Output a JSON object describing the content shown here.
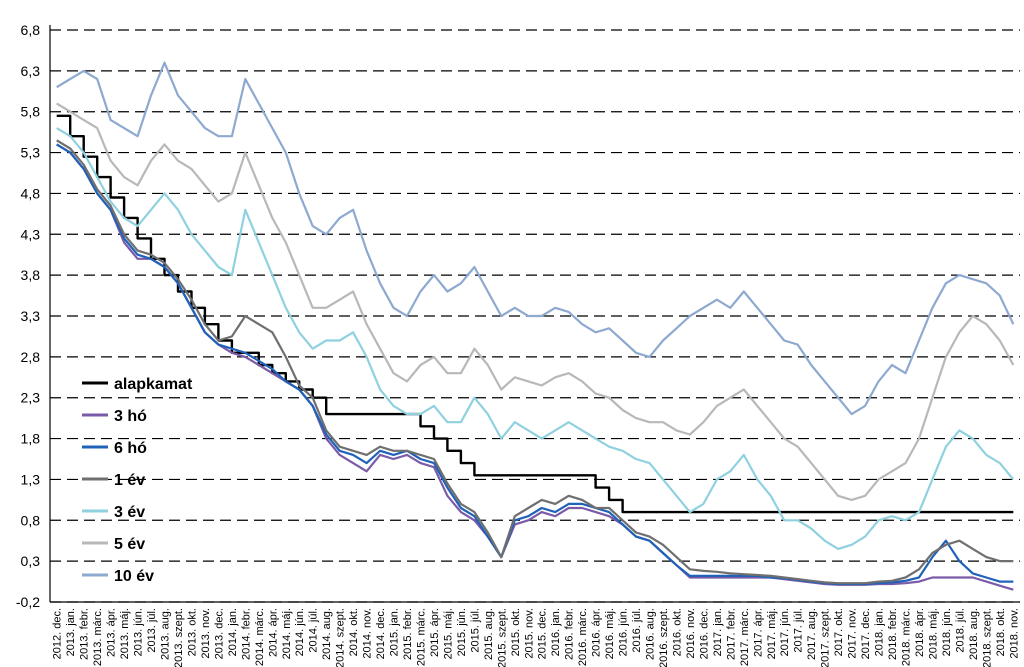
{
  "chart_data": {
    "type": "line",
    "ylim": [
      -0.2,
      6.8
    ],
    "y_ticks": [
      "6,8",
      "6,3",
      "5,8",
      "5,3",
      "4,8",
      "4,3",
      "3,8",
      "3,3",
      "2,8",
      "2,3",
      "1,8",
      "1,3",
      "0,8",
      "0,3",
      "-0,2"
    ],
    "x_ticks": [
      "2012. dec.",
      "2013. jan.",
      "2013. febr.",
      "2013. márc.",
      "2013. ápr.",
      "2013. máj.",
      "2013. jún.",
      "2013. júl.",
      "2013. aug.",
      "2013. szept.",
      "2013. okt.",
      "2013. nov.",
      "2013. dec.",
      "2014. jan.",
      "2014. febr.",
      "2014. márc.",
      "2014. ápr.",
      "2014. máj.",
      "2014. jún.",
      "2014. júl.",
      "2014. aug.",
      "2014. szept.",
      "2014. okt.",
      "2014. nov.",
      "2014. dec.",
      "2015. jan.",
      "2015. febr.",
      "2015. márc.",
      "2015. ápr.",
      "2015. máj.",
      "2015. jún.",
      "2015. júl.",
      "2015. aug.",
      "2015. szept.",
      "2015. okt.",
      "2015. nov.",
      "2015. dec.",
      "2016. jan.",
      "2016. febr.",
      "2016. márc.",
      "2016. ápr.",
      "2016. máj.",
      "2016. jún.",
      "2016. júl.",
      "2016. aug.",
      "2016. szept.",
      "2016. okt.",
      "2016. nov.",
      "2016. dec.",
      "2017. jan.",
      "2017. febr.",
      "2017. márc.",
      "2017. ápr.",
      "2017. máj.",
      "2017. jún.",
      "2017. júl.",
      "2017. aug.",
      "2017. szept.",
      "2017. okt.",
      "2017. nov.",
      "2017. dec.",
      "2018. jan.",
      "2018. febr.",
      "2018. márc.",
      "2018. ápr.",
      "2018. máj.",
      "2018. jún.",
      "2018. júl.",
      "2018. aug.",
      "2018. szept.",
      "2018. okt.",
      "2018. nov."
    ],
    "grid": "horizontal dashed",
    "legend_position": "left",
    "series": [
      {
        "name": "alapkamat",
        "color": "#000000",
        "values": [
          5.75,
          5.5,
          5.25,
          5.0,
          4.75,
          4.5,
          4.25,
          4.0,
          3.8,
          3.6,
          3.4,
          3.2,
          3.0,
          2.85,
          2.85,
          2.7,
          2.6,
          2.5,
          2.4,
          2.3,
          2.1,
          2.1,
          2.1,
          2.1,
          2.1,
          2.1,
          2.1,
          1.95,
          1.8,
          1.65,
          1.5,
          1.35,
          1.35,
          1.35,
          1.35,
          1.35,
          1.35,
          1.35,
          1.35,
          1.35,
          1.2,
          1.05,
          0.9,
          0.9,
          0.9,
          0.9,
          0.9,
          0.9,
          0.9,
          0.9,
          0.9,
          0.9,
          0.9,
          0.9,
          0.9,
          0.9,
          0.9,
          0.9,
          0.9,
          0.9,
          0.9,
          0.9,
          0.9,
          0.9,
          0.9,
          0.9,
          0.9,
          0.9,
          0.9,
          0.9,
          0.9,
          0.9
        ]
      },
      {
        "name": "3 hó",
        "color": "#7b5ba8",
        "values": [
          5.4,
          5.3,
          5.1,
          4.8,
          4.6,
          4.2,
          4.0,
          4.0,
          3.9,
          3.7,
          3.4,
          3.1,
          2.95,
          2.85,
          2.8,
          2.7,
          2.6,
          2.5,
          2.4,
          2.2,
          1.8,
          1.6,
          1.5,
          1.4,
          1.6,
          1.55,
          1.6,
          1.5,
          1.45,
          1.1,
          0.9,
          0.8,
          0.6,
          0.35,
          0.75,
          0.8,
          0.9,
          0.85,
          0.95,
          0.95,
          0.9,
          0.85,
          0.75,
          0.6,
          0.55,
          0.4,
          0.25,
          0.1,
          0.1,
          0.1,
          0.1,
          0.1,
          0.1,
          0.1,
          0.08,
          0.06,
          0.04,
          0.02,
          0.01,
          0.01,
          0.01,
          0.02,
          0.02,
          0.03,
          0.05,
          0.1,
          0.1,
          0.1,
          0.1,
          0.05,
          0.0,
          -0.05
        ]
      },
      {
        "name": "6 hó",
        "color": "#1f62b8",
        "values": [
          5.4,
          5.3,
          5.1,
          4.8,
          4.6,
          4.25,
          4.05,
          4.0,
          3.9,
          3.7,
          3.4,
          3.1,
          2.95,
          2.9,
          2.85,
          2.75,
          2.65,
          2.5,
          2.4,
          2.2,
          1.85,
          1.65,
          1.6,
          1.5,
          1.65,
          1.6,
          1.65,
          1.55,
          1.5,
          1.2,
          0.95,
          0.85,
          0.6,
          0.35,
          0.8,
          0.85,
          0.95,
          0.9,
          1.0,
          1.0,
          0.95,
          0.9,
          0.75,
          0.6,
          0.55,
          0.4,
          0.25,
          0.12,
          0.12,
          0.12,
          0.12,
          0.12,
          0.12,
          0.1,
          0.09,
          0.07,
          0.05,
          0.03,
          0.02,
          0.02,
          0.02,
          0.03,
          0.04,
          0.06,
          0.1,
          0.35,
          0.55,
          0.3,
          0.15,
          0.1,
          0.05,
          0.05
        ]
      },
      {
        "name": "1 év",
        "color": "#6f6f6f",
        "values": [
          5.45,
          5.35,
          5.15,
          4.85,
          4.65,
          4.3,
          4.1,
          4.05,
          3.95,
          3.75,
          3.5,
          3.2,
          3.0,
          3.05,
          3.3,
          3.2,
          3.1,
          2.8,
          2.45,
          2.3,
          1.9,
          1.7,
          1.65,
          1.6,
          1.7,
          1.65,
          1.65,
          1.6,
          1.55,
          1.25,
          1.0,
          0.9,
          0.65,
          0.35,
          0.85,
          0.95,
          1.05,
          1.0,
          1.1,
          1.05,
          0.95,
          0.95,
          0.8,
          0.65,
          0.6,
          0.5,
          0.35,
          0.2,
          0.18,
          0.17,
          0.15,
          0.14,
          0.13,
          0.12,
          0.1,
          0.08,
          0.06,
          0.04,
          0.03,
          0.03,
          0.03,
          0.05,
          0.06,
          0.1,
          0.2,
          0.4,
          0.5,
          0.55,
          0.45,
          0.35,
          0.3,
          0.3
        ]
      },
      {
        "name": "3 év",
        "color": "#8fd1df",
        "values": [
          5.6,
          5.5,
          5.3,
          5.0,
          4.7,
          4.5,
          4.4,
          4.6,
          4.8,
          4.6,
          4.3,
          4.1,
          3.9,
          3.8,
          4.6,
          4.2,
          3.8,
          3.4,
          3.1,
          2.9,
          3.0,
          3.0,
          3.1,
          2.8,
          2.4,
          2.2,
          2.1,
          2.1,
          2.2,
          2.0,
          2.0,
          2.3,
          2.1,
          1.8,
          2.0,
          1.9,
          1.8,
          1.9,
          2.0,
          1.9,
          1.8,
          1.7,
          1.65,
          1.55,
          1.5,
          1.3,
          1.1,
          0.9,
          1.0,
          1.3,
          1.4,
          1.6,
          1.3,
          1.1,
          0.8,
          0.8,
          0.7,
          0.55,
          0.45,
          0.5,
          0.6,
          0.8,
          0.85,
          0.8,
          0.9,
          1.3,
          1.7,
          1.9,
          1.8,
          1.6,
          1.5,
          1.3
        ]
      },
      {
        "name": "5 év",
        "color": "#b8b8b8",
        "values": [
          5.9,
          5.8,
          5.7,
          5.6,
          5.2,
          5.0,
          4.9,
          5.2,
          5.4,
          5.2,
          5.1,
          4.9,
          4.7,
          4.8,
          5.3,
          4.9,
          4.5,
          4.2,
          3.8,
          3.4,
          3.4,
          3.5,
          3.6,
          3.2,
          2.9,
          2.6,
          2.5,
          2.7,
          2.8,
          2.6,
          2.6,
          2.9,
          2.7,
          2.4,
          2.55,
          2.5,
          2.45,
          2.55,
          2.6,
          2.5,
          2.35,
          2.3,
          2.15,
          2.05,
          2.0,
          2.0,
          1.9,
          1.85,
          2.0,
          2.2,
          2.3,
          2.4,
          2.2,
          2.0,
          1.8,
          1.7,
          1.5,
          1.3,
          1.1,
          1.05,
          1.1,
          1.3,
          1.4,
          1.5,
          1.8,
          2.3,
          2.8,
          3.1,
          3.3,
          3.2,
          3.0,
          2.7
        ]
      },
      {
        "name": "10 év",
        "color": "#8ea9d0",
        "values": [
          6.1,
          6.2,
          6.3,
          6.2,
          5.7,
          5.6,
          5.5,
          6.0,
          6.4,
          6.0,
          5.8,
          5.6,
          5.5,
          5.5,
          6.2,
          5.9,
          5.6,
          5.3,
          4.8,
          4.4,
          4.3,
          4.5,
          4.6,
          4.1,
          3.7,
          3.4,
          3.3,
          3.6,
          3.8,
          3.6,
          3.7,
          3.9,
          3.6,
          3.3,
          3.4,
          3.3,
          3.3,
          3.4,
          3.35,
          3.2,
          3.1,
          3.15,
          3.0,
          2.85,
          2.8,
          3.0,
          3.15,
          3.3,
          3.4,
          3.5,
          3.4,
          3.6,
          3.4,
          3.2,
          3.0,
          2.95,
          2.7,
          2.5,
          2.3,
          2.1,
          2.2,
          2.5,
          2.7,
          2.6,
          3.0,
          3.4,
          3.7,
          3.8,
          3.75,
          3.7,
          3.55,
          3.2
        ]
      }
    ]
  }
}
